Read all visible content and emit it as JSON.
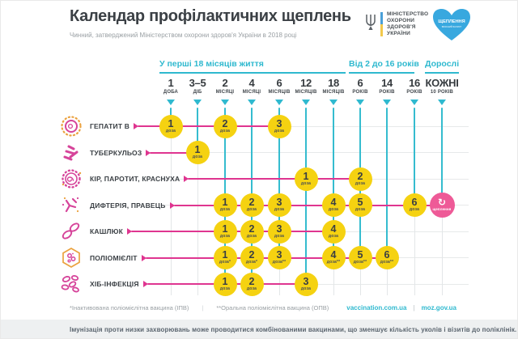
{
  "header": {
    "title": "Календар профілактичних щеплень",
    "subtitle": "Чинний, затверджений Міністерством охорони здоров'я України в 2018 році",
    "ministry": {
      "lines": [
        "МІНІСТЕРСТВО",
        "ОХОРОНИ",
        "ЗДОРОВ'Я",
        "УКРАЇНИ"
      ]
    },
    "heart": {
      "title": "ЩЕПЛЕННЯ",
      "subtitle": "ВЛАСНИЙ ЗАХИСТ"
    }
  },
  "age_groups": [
    {
      "label": "У перші 18 місяців життя"
    },
    {
      "label": "Від 2 до 16 років"
    },
    {
      "label": "Дорослі"
    }
  ],
  "columns": [
    {
      "value": "1",
      "unit": "ДОБА"
    },
    {
      "value": "3–5",
      "unit": "ДІБ"
    },
    {
      "value": "2",
      "unit": "МІСЯЦІ"
    },
    {
      "value": "4",
      "unit": "МІСЯЦІ"
    },
    {
      "value": "6",
      "unit": "МІСЯЦІВ"
    },
    {
      "value": "12",
      "unit": "МІСЯЦІВ"
    },
    {
      "value": "18",
      "unit": "МІСЯЦІВ"
    },
    {
      "value": "6",
      "unit": "РОКІВ"
    },
    {
      "value": "14",
      "unit": "РОКІВ"
    },
    {
      "value": "16",
      "unit": "РОКІВ"
    },
    {
      "value": "КОЖНІ",
      "unit": "10 РОКІВ"
    }
  ],
  "rows": [
    {
      "disease": "ГЕПАТИТ В",
      "icon": "hepatitis-virus-icon",
      "doses": [
        {
          "col": 0,
          "n": "1",
          "label": "доза"
        },
        {
          "col": 2,
          "n": "2",
          "label": "доза"
        },
        {
          "col": 4,
          "n": "3",
          "label": "доза"
        }
      ]
    },
    {
      "disease": "ТУБЕРКУЛЬОЗ",
      "icon": "tuberculosis-bacteria-icon",
      "doses": [
        {
          "col": 1,
          "n": "1",
          "label": "доза"
        }
      ]
    },
    {
      "disease": "КІР, ПАРОТИТ, КРАСНУХА",
      "icon": "measles-virus-icon",
      "doses": [
        {
          "col": 5,
          "n": "1",
          "label": "доза"
        },
        {
          "col": 7,
          "n": "2",
          "label": "доза"
        }
      ]
    },
    {
      "disease": "ДИФТЕРІЯ, ПРАВЕЦЬ",
      "icon": "diphtheria-bacteria-icon",
      "doses": [
        {
          "col": 2,
          "n": "1",
          "label": "доза"
        },
        {
          "col": 3,
          "n": "2",
          "label": "доза"
        },
        {
          "col": 4,
          "n": "3",
          "label": "доза"
        },
        {
          "col": 6,
          "n": "4",
          "label": "доза"
        },
        {
          "col": 7,
          "n": "5",
          "label": "доза"
        },
        {
          "col": 9,
          "n": "6",
          "label": "доза"
        },
        {
          "col": 10,
          "type": "booster",
          "label": "щеплення"
        }
      ]
    },
    {
      "disease": "КАШЛЮК",
      "icon": "pertussis-bacteria-icon",
      "doses": [
        {
          "col": 2,
          "n": "1",
          "label": "доза"
        },
        {
          "col": 3,
          "n": "2",
          "label": "доза"
        },
        {
          "col": 4,
          "n": "3",
          "label": "доза"
        },
        {
          "col": 6,
          "n": "4",
          "label": "доза"
        }
      ]
    },
    {
      "disease": "ПОЛІОМІЄЛІТ",
      "icon": "polio-virus-icon",
      "doses": [
        {
          "col": 2,
          "n": "1",
          "label": "доза*"
        },
        {
          "col": 3,
          "n": "2",
          "label": "доза*"
        },
        {
          "col": 4,
          "n": "3",
          "label": "доза**"
        },
        {
          "col": 6,
          "n": "4",
          "label": "доза**"
        },
        {
          "col": 7,
          "n": "5",
          "label": "доза**"
        },
        {
          "col": 8,
          "n": "6",
          "label": "доза**"
        }
      ]
    },
    {
      "disease": "ХІБ-ІНФЕКЦІЯ",
      "icon": "hib-bacteria-icon",
      "doses": [
        {
          "col": 2,
          "n": "1",
          "label": "доза"
        },
        {
          "col": 3,
          "n": "2",
          "label": "доза"
        },
        {
          "col": 5,
          "n": "3",
          "label": "доза"
        }
      ]
    }
  ],
  "footnotes": {
    "left": "*Інактивована поліомієлітна вакцина (ІПВ)",
    "sep": "|",
    "right": "**Оральна поліомієлітна вакцина (ОПВ)"
  },
  "links": {
    "a": "vaccination.com.ua",
    "sep": "|",
    "b": "moz.gov.ua"
  },
  "bottom_note": "Імунізація проти низки захворювань може проводитися комбінованими вакцинами, що зменшує кількість уколів і візитів до поліклінік.",
  "colors": {
    "accent_cyan": "#2fb9cf",
    "dose_yellow": "#f5d211",
    "timeline_pink": "#df3590",
    "booster_pink": "#ee5a97",
    "heart_blue": "#38a8df",
    "icon_pink": "#d6449a",
    "icon_orange": "#eba23f"
  }
}
